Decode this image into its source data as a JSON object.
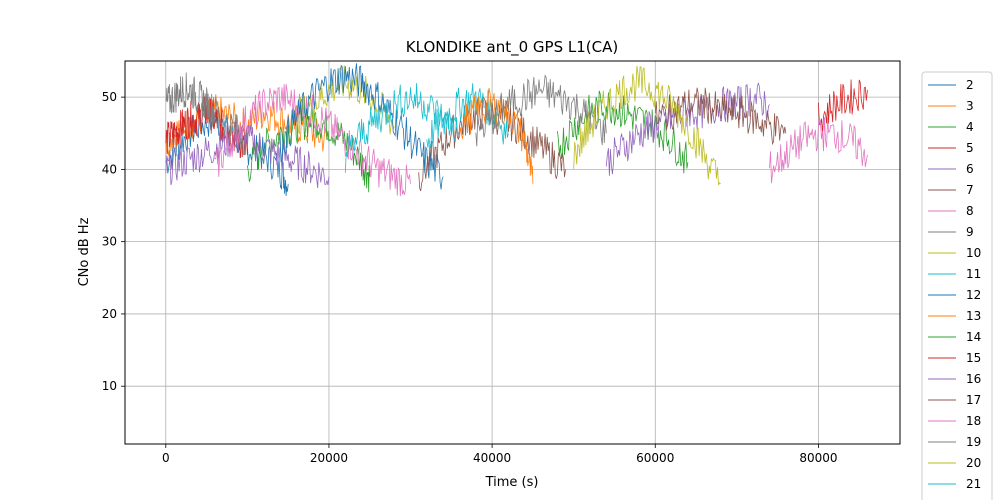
{
  "chart_data": {
    "type": "line",
    "title": "KLONDIKE ant_0 GPS L1(CA)",
    "xlabel": "Time (s)",
    "ylabel": "CNo dB Hz",
    "xlim": [
      -5000,
      90000
    ],
    "ylim": [
      2,
      55
    ],
    "x_ticks": [
      0,
      20000,
      40000,
      60000,
      80000
    ],
    "y_ticks": [
      10,
      20,
      30,
      40,
      50
    ],
    "grid": true,
    "legend_position": "right, outside plot",
    "series": [
      {
        "name": "2",
        "color": "#1f77b4",
        "x": [
          0,
          2000,
          4000,
          6000,
          8000,
          10000,
          12000,
          14000,
          15000
        ],
        "y": [
          41,
          44,
          46,
          47,
          45,
          43,
          42,
          40,
          38
        ]
      },
      {
        "name": "3",
        "color": "#ff7f0e",
        "x": [
          0,
          2000,
          4000,
          6000,
          8000,
          10000,
          12000,
          14000,
          16000,
          18000,
          20000
        ],
        "y": [
          44,
          46,
          47,
          48,
          47,
          46,
          48,
          47,
          46,
          45,
          44
        ]
      },
      {
        "name": "4",
        "color": "#2ca02c",
        "x": [
          10000,
          12000,
          14000,
          16000,
          18000,
          20000,
          22000,
          24000,
          25000
        ],
        "y": [
          40,
          43,
          45,
          46,
          47,
          46,
          44,
          41,
          39
        ]
      },
      {
        "name": "5",
        "color": "#d62728",
        "x": [
          0,
          1000,
          2000,
          3000,
          4000,
          5000,
          6000,
          7000,
          8000,
          9000,
          10000
        ],
        "y": [
          44,
          45,
          46,
          47,
          47,
          48,
          47,
          46,
          45,
          44,
          42
        ]
      },
      {
        "name": "6",
        "color": "#9467bd",
        "x": [
          0,
          2000,
          4000,
          6000,
          8000,
          10000,
          12000,
          14000,
          16000,
          18000,
          20000
        ],
        "y": [
          40,
          41,
          42,
          43,
          44,
          44,
          43,
          42,
          41,
          40,
          39
        ]
      },
      {
        "name": "7",
        "color": "#8c564b",
        "x": [
          31000,
          33000,
          35000,
          37000,
          39000,
          41000,
          43000,
          45000,
          47000,
          49000
        ],
        "y": [
          39,
          42,
          45,
          47,
          48,
          47,
          46,
          44,
          42,
          40
        ]
      },
      {
        "name": "8",
        "color": "#e377c2",
        "x": [
          6000,
          8000,
          10000,
          12000,
          14000,
          16000,
          18000,
          20000,
          22000,
          24000,
          26000,
          28000,
          30000
        ],
        "y": [
          40,
          44,
          47,
          49,
          50,
          49,
          48,
          46,
          44,
          42,
          40,
          39,
          38
        ]
      },
      {
        "name": "9",
        "color": "#7f7f7f",
        "x": [
          0,
          1000,
          2000,
          3000,
          4000,
          5000,
          6000,
          8000,
          10000
        ],
        "y": [
          49,
          50,
          51,
          51,
          50,
          49,
          48,
          46,
          44
        ]
      },
      {
        "name": "10",
        "color": "#bcbd22",
        "x": [
          16000,
          18000,
          20000,
          22000,
          24000,
          26000,
          28000
        ],
        "y": [
          47,
          49,
          51,
          52,
          51,
          49,
          46
        ]
      },
      {
        "name": "11",
        "color": "#17becf",
        "x": [
          32000,
          34000,
          36000,
          38000,
          40000,
          42000
        ],
        "y": [
          44,
          47,
          49,
          50,
          48,
          45
        ]
      },
      {
        "name": "12",
        "color": "#1f77b4",
        "x": [
          14000,
          16000,
          18000,
          20000,
          22000,
          24000,
          26000,
          28000,
          30000,
          32000,
          34000
        ],
        "y": [
          43,
          47,
          50,
          52,
          53,
          52,
          50,
          47,
          44,
          41,
          39
        ]
      },
      {
        "name": "13",
        "color": "#ff7f0e",
        "x": [
          36000,
          38000,
          40000,
          42000,
          44000,
          45000
        ],
        "y": [
          46,
          48,
          49,
          48,
          44,
          38
        ]
      },
      {
        "name": "14",
        "color": "#2ca02c",
        "x": [
          48000,
          50000,
          52000,
          54000,
          56000,
          58000,
          60000,
          62000,
          64000
        ],
        "y": [
          43,
          46,
          48,
          49,
          48,
          47,
          46,
          44,
          41
        ]
      },
      {
        "name": "15",
        "color": "#d62728",
        "x": [
          80000,
          82000,
          84000,
          86000
        ],
        "y": [
          47,
          49,
          50,
          51
        ]
      },
      {
        "name": "16",
        "color": "#9467bd",
        "x": [
          54000,
          56000,
          58000,
          60000,
          62000,
          64000,
          66000,
          68000,
          70000,
          72000,
          74000
        ],
        "y": [
          41,
          43,
          45,
          46,
          47,
          48,
          48,
          49,
          49,
          50,
          49
        ]
      },
      {
        "name": "17",
        "color": "#8c564b",
        "x": [
          60000,
          62000,
          64000,
          66000,
          68000,
          70000,
          72000,
          74000,
          76000
        ],
        "y": [
          47,
          48,
          49,
          49,
          48,
          48,
          47,
          46,
          45
        ]
      },
      {
        "name": "18",
        "color": "#e377c2",
        "x": [
          74000,
          76000,
          78000,
          80000,
          82000,
          84000,
          86000
        ],
        "y": [
          40,
          42,
          44,
          45,
          45,
          44,
          42
        ]
      },
      {
        "name": "19",
        "color": "#7f7f7f",
        "x": [
          38000,
          40000,
          42000,
          44000,
          46000,
          48000,
          50000,
          52000,
          54000
        ],
        "y": [
          45,
          47,
          49,
          50,
          51,
          50,
          49,
          47,
          45
        ]
      },
      {
        "name": "20",
        "color": "#bcbd22",
        "x": [
          50000,
          52000,
          54000,
          56000,
          58000,
          60000,
          62000,
          64000,
          66000,
          68000
        ],
        "y": [
          42,
          46,
          49,
          51,
          52,
          51,
          49,
          46,
          42,
          38
        ]
      },
      {
        "name": "21",
        "color": "#17becf",
        "x": [
          22000,
          24000,
          26000,
          28000,
          30000,
          32000,
          34000,
          36000
        ],
        "y": [
          42,
          45,
          47,
          49,
          50,
          49,
          47,
          45
        ]
      }
    ]
  }
}
